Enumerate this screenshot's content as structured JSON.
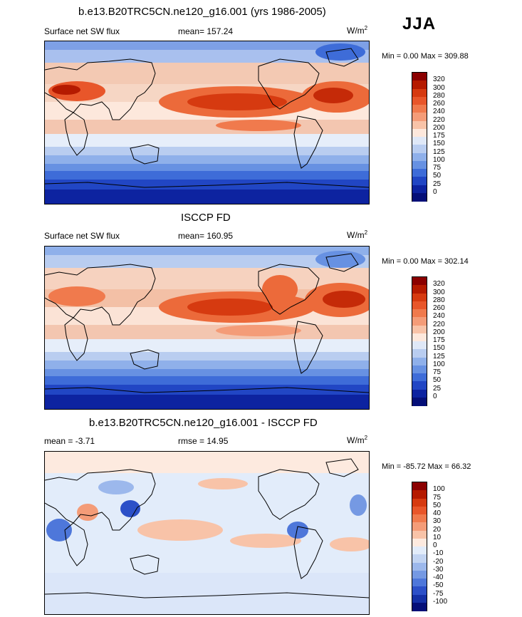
{
  "header": {
    "model_title": "b.e13.B20TRC5CN.ne120_g16.001 (yrs 1986-2005)",
    "season": "JJA"
  },
  "panels": [
    {
      "name": "model",
      "title": "b.e13.B20TRC5CN.ne120_g16.001 (yrs 1986-2005)",
      "variable": "Surface net SW flux",
      "stat": "mean= 157.24",
      "units_base": "W/m",
      "units_exp": "2",
      "minmax": "Min =   0.00 Max = 309.88",
      "cbar_labels": [
        "320",
        "300",
        "280",
        "260",
        "240",
        "220",
        "200",
        "175",
        "150",
        "125",
        "100",
        "75",
        "50",
        "25",
        "0"
      ],
      "cbar_colors": [
        "#8b0000",
        "#b51a00",
        "#d63a10",
        "#e8562a",
        "#f07a4d",
        "#f49c78",
        "#f8c3a8",
        "#fde8dc",
        "#dfe8f7",
        "#b9cdf0",
        "#8fb0ea",
        "#6791e2",
        "#3e6cd8",
        "#2146c4",
        "#0d23a0",
        "#050f78"
      ]
    },
    {
      "name": "obs",
      "title": "ISCCP FD",
      "variable": "Surface net SW flux",
      "stat": "mean= 160.95",
      "units_base": "W/m",
      "units_exp": "2",
      "minmax": "Min =   0.00 Max = 302.14",
      "cbar_labels": [
        "320",
        "300",
        "280",
        "260",
        "240",
        "220",
        "200",
        "175",
        "150",
        "125",
        "100",
        "75",
        "50",
        "25",
        "0"
      ],
      "cbar_colors": [
        "#8b0000",
        "#b51a00",
        "#d63a10",
        "#e8562a",
        "#f07a4d",
        "#f49c78",
        "#f8c3a8",
        "#fde8dc",
        "#dfe8f7",
        "#b9cdf0",
        "#8fb0ea",
        "#6791e2",
        "#3e6cd8",
        "#2146c4",
        "#0d23a0",
        "#050f78"
      ]
    },
    {
      "name": "diff",
      "title": "b.e13.B20TRC5CN.ne120_g16.001 - ISCCP FD",
      "mean_label": "mean =  -3.71",
      "rmse_label": "rmse =  14.95",
      "units_base": "W/m",
      "units_exp": "2",
      "minmax": "Min = -85.72 Max =  66.32",
      "cbar_labels": [
        "100",
        "75",
        "50",
        "40",
        "30",
        "20",
        "10",
        "0",
        "-10",
        "-20",
        "-30",
        "-40",
        "-50",
        "-75",
        "-100"
      ],
      "cbar_colors": [
        "#8b0000",
        "#b51a00",
        "#d63a10",
        "#e8562a",
        "#f07a4d",
        "#f49c78",
        "#f8c3a8",
        "#fdeadf",
        "#e2ecfa",
        "#c2d4f2",
        "#9cb8ec",
        "#7599e3",
        "#4e77da",
        "#2c50c8",
        "#1430a6",
        "#050f78"
      ]
    }
  ]
}
